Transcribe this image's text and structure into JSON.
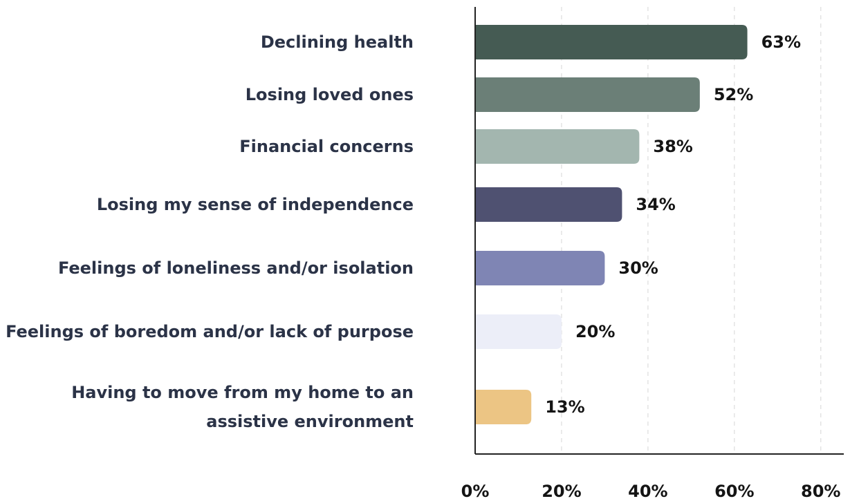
{
  "chart_data": {
    "type": "bar",
    "orientation": "horizontal",
    "categories": [
      "Declining health",
      "Losing loved ones",
      "Financial concerns",
      "Losing my sense of independence",
      "Feelings of loneliness and/or isolation",
      "Feelings of boredom and/or lack of purpose",
      "Having to move from my home to an assistive environment"
    ],
    "values": [
      63,
      52,
      38,
      34,
      30,
      20,
      13
    ],
    "value_labels": [
      "63%",
      "52%",
      "38%",
      "34%",
      "30%",
      "20%",
      "13%"
    ],
    "colors": [
      "#455b53",
      "#6b7f77",
      "#a3b6af",
      "#4f5171",
      "#7f85b4",
      "#eceef8",
      "#ecc584"
    ],
    "xlim": [
      0,
      85
    ],
    "xticks": [
      {
        "value": 0,
        "label": "0%"
      },
      {
        "value": 20,
        "label": "20%"
      },
      {
        "value": 40,
        "label": "40%"
      },
      {
        "value": 60,
        "label": "60%"
      },
      {
        "value": 80,
        "label": "80%"
      }
    ],
    "grid": true
  }
}
